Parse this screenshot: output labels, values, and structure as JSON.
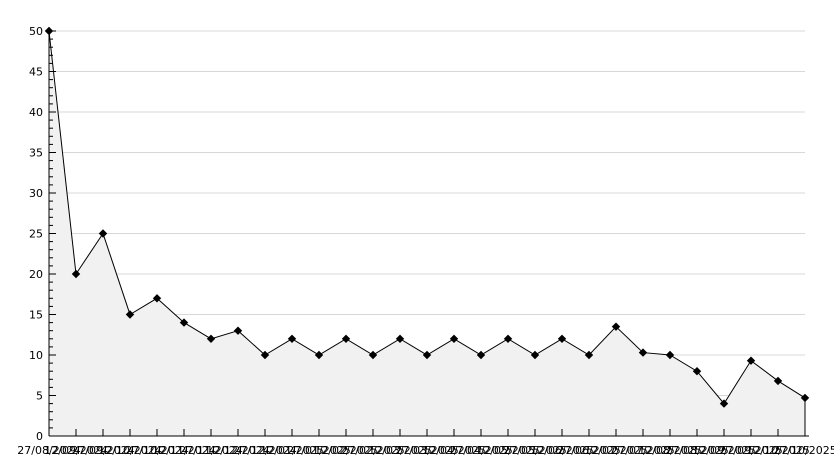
{
  "figure": {
    "title": "",
    "background": "#ffffff"
  },
  "chart_data": {
    "type": "area",
    "title": "",
    "xlabel": "",
    "ylabel": "",
    "legend": "none",
    "grid": "horizontal-major-only",
    "x_labels": [
      "27/08/2024",
      "12/09/2024",
      "27/09/2024",
      "12/10/2024",
      "27/10/2024",
      "12/11/2024",
      "27/11/2024",
      "12/12/2024",
      "27/12/2024",
      "12/01/2025",
      "27/01/2025",
      "12/02/2025",
      "27/02/2025",
      "12/03/2025",
      "27/03/2025",
      "12/04/2025",
      "27/04/2025",
      "12/05/2025",
      "27/05/2025",
      "12/06/2025",
      "27/06/2025",
      "12/07/2025",
      "27/07/2025",
      "12/08/2025",
      "27/08/2025",
      "12/09/2025",
      "27/09/2025",
      "12/10/2025",
      "27/10/2025"
    ],
    "values": [
      50,
      20,
      25,
      15,
      17,
      14,
      12,
      13,
      10,
      12,
      10,
      12,
      10,
      12,
      10,
      12,
      10,
      12,
      10,
      12,
      10,
      13.5,
      10.3,
      10,
      8,
      4,
      9.3,
      6.8,
      4.7
    ],
    "y_ticks": [
      0,
      5,
      10,
      15,
      20,
      25,
      30,
      35,
      40,
      45,
      50
    ],
    "ylim": [
      0,
      50
    ],
    "y_minor_step": 1,
    "marker": "diamond",
    "colors": {
      "line": "#000000",
      "marker": "#000000",
      "fill": "#f1f1f1",
      "grid": "#d8d8d8",
      "axis": "#000000",
      "tick_label": "#000000",
      "background": "#ffffff"
    }
  }
}
